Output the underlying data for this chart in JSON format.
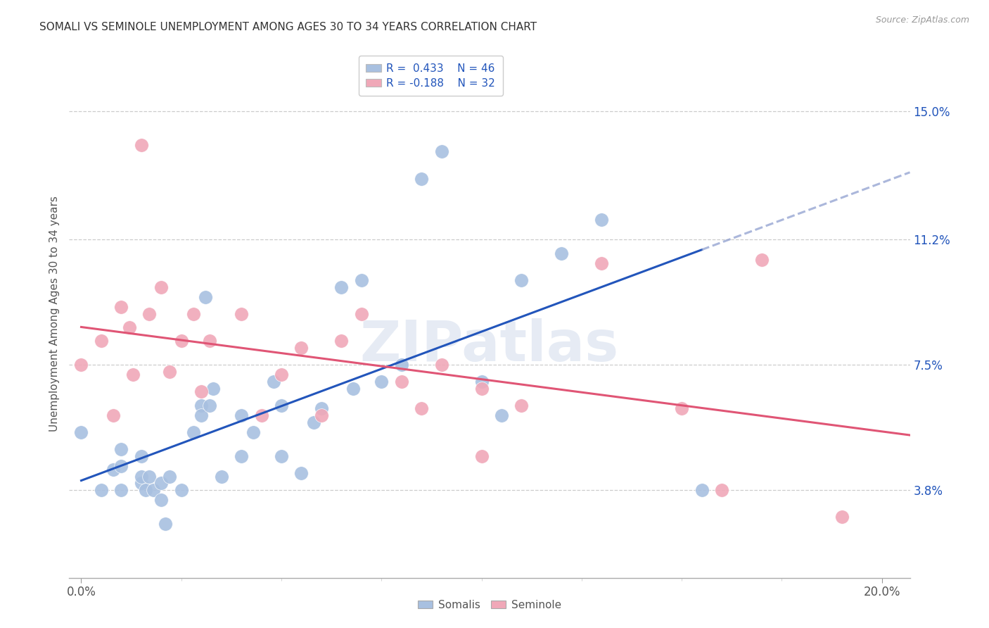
{
  "title": "SOMALI VS SEMINOLE UNEMPLOYMENT AMONG AGES 30 TO 34 YEARS CORRELATION CHART",
  "source": "Source: ZipAtlas.com",
  "xlabel_ticks_labels": [
    "0.0%",
    "20.0%"
  ],
  "xlabel_ticks_vals": [
    0.0,
    0.2
  ],
  "ylabel": "Unemployment Among Ages 30 to 34 years",
  "ylabel_ticks": [
    "3.8%",
    "7.5%",
    "11.2%",
    "15.0%"
  ],
  "ylabel_vals": [
    0.038,
    0.075,
    0.112,
    0.15
  ],
  "xlim": [
    -0.003,
    0.207
  ],
  "ylim": [
    0.012,
    0.168
  ],
  "somalis_R": 0.433,
  "somalis_N": 46,
  "seminole_R": -0.188,
  "seminole_N": 32,
  "legend_somalis_label": "R =  0.433    N = 46",
  "legend_seminole_label": "R = -0.188    N = 32",
  "somali_color": "#a8c0e0",
  "seminole_color": "#f0a8b8",
  "somali_line_color": "#2255bb",
  "seminole_line_color": "#e05575",
  "somali_line_dash_color": "#8899cc",
  "watermark_text": "ZIPatlas",
  "somali_scatter_x": [
    0.0,
    0.005,
    0.008,
    0.01,
    0.01,
    0.01,
    0.015,
    0.015,
    0.015,
    0.016,
    0.017,
    0.018,
    0.02,
    0.02,
    0.021,
    0.022,
    0.025,
    0.028,
    0.03,
    0.03,
    0.031,
    0.032,
    0.033,
    0.035,
    0.04,
    0.04,
    0.043,
    0.048,
    0.05,
    0.05,
    0.055,
    0.058,
    0.06,
    0.065,
    0.068,
    0.07,
    0.075,
    0.08,
    0.085,
    0.09,
    0.1,
    0.105,
    0.11,
    0.12,
    0.13,
    0.155
  ],
  "somali_scatter_y": [
    0.055,
    0.038,
    0.044,
    0.05,
    0.038,
    0.045,
    0.04,
    0.042,
    0.048,
    0.038,
    0.042,
    0.038,
    0.04,
    0.035,
    0.028,
    0.042,
    0.038,
    0.055,
    0.063,
    0.06,
    0.095,
    0.063,
    0.068,
    0.042,
    0.06,
    0.048,
    0.055,
    0.07,
    0.063,
    0.048,
    0.043,
    0.058,
    0.062,
    0.098,
    0.068,
    0.1,
    0.07,
    0.075,
    0.13,
    0.138,
    0.07,
    0.06,
    0.1,
    0.108,
    0.118,
    0.038
  ],
  "seminole_scatter_x": [
    0.0,
    0.005,
    0.008,
    0.01,
    0.012,
    0.013,
    0.015,
    0.017,
    0.02,
    0.022,
    0.025,
    0.028,
    0.03,
    0.032,
    0.04,
    0.045,
    0.05,
    0.055,
    0.06,
    0.065,
    0.07,
    0.08,
    0.085,
    0.09,
    0.1,
    0.1,
    0.11,
    0.13,
    0.15,
    0.16,
    0.17,
    0.19
  ],
  "seminole_scatter_y": [
    0.075,
    0.082,
    0.06,
    0.092,
    0.086,
    0.072,
    0.14,
    0.09,
    0.098,
    0.073,
    0.082,
    0.09,
    0.067,
    0.082,
    0.09,
    0.06,
    0.072,
    0.08,
    0.06,
    0.082,
    0.09,
    0.07,
    0.062,
    0.075,
    0.068,
    0.048,
    0.063,
    0.105,
    0.062,
    0.038,
    0.106,
    0.03
  ],
  "background_color": "#ffffff",
  "grid_color": "#cccccc"
}
